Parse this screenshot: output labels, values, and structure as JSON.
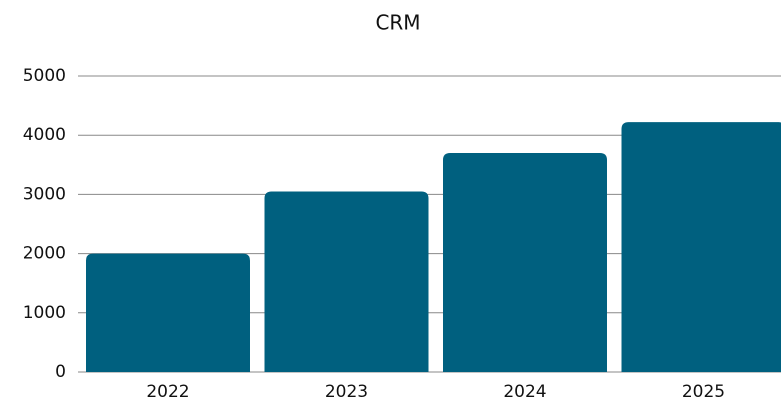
{
  "chart_data": {
    "type": "bar",
    "title": "CRM",
    "categories": [
      "2022",
      "2023",
      "2024",
      "2025"
    ],
    "values": [
      2000,
      3050,
      3700,
      4220
    ],
    "color": "#00607f",
    "ylim": [
      0,
      5000
    ],
    "yticks": [
      0,
      1000,
      2000,
      3000,
      4000,
      5000
    ],
    "grid": true
  }
}
